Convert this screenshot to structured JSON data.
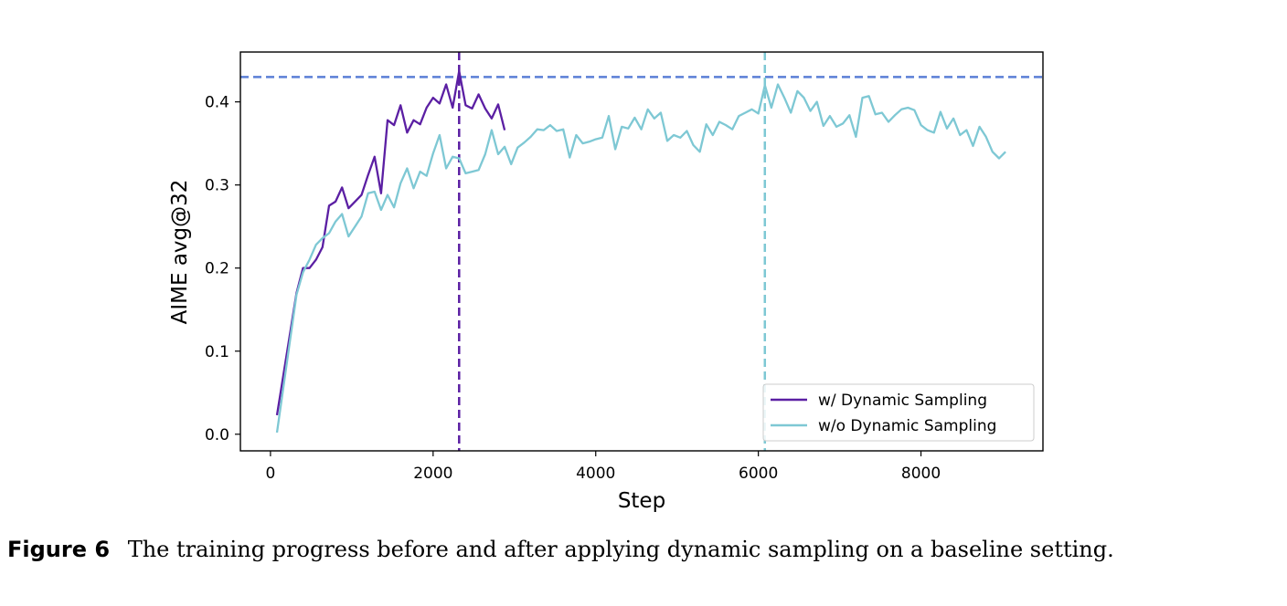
{
  "chart_data": {
    "type": "line",
    "title": "",
    "xlabel": "Step",
    "ylabel": "AIME avg@32",
    "xlim": [
      -370,
      9500
    ],
    "ylim": [
      -0.02,
      0.46
    ],
    "xticks": [
      0,
      2000,
      4000,
      6000,
      8000
    ],
    "yticks": [
      0.0,
      0.1,
      0.2,
      0.3,
      0.4
    ],
    "xtick_labels": [
      "0",
      "2000",
      "4000",
      "6000",
      "8000"
    ],
    "ytick_labels": [
      "0.0",
      "0.1",
      "0.2",
      "0.3",
      "0.4"
    ],
    "legend_position": "lower-right",
    "reference_lines": [
      {
        "orientation": "horizontal",
        "value": 0.43,
        "color": "#5b7fd6",
        "style": "dashed"
      },
      {
        "orientation": "vertical",
        "value": 2320,
        "color": "#5b1fa3",
        "style": "dashed"
      },
      {
        "orientation": "vertical",
        "value": 6080,
        "color": "#7ec8d4",
        "style": "dashed"
      }
    ],
    "series": [
      {
        "name": "w/ Dynamic Sampling",
        "color": "#5b1fa3",
        "x": [
          80,
          320,
          400,
          480,
          560,
          640,
          720,
          800,
          880,
          960,
          1040,
          1120,
          1200,
          1280,
          1360,
          1440,
          1520,
          1600,
          1680,
          1760,
          1840,
          1920,
          2000,
          2080,
          2160,
          2240,
          2320,
          2400,
          2480,
          2560,
          2640,
          2720,
          2800,
          2880
        ],
        "y": [
          0.023,
          0.17,
          0.2,
          0.2,
          0.21,
          0.225,
          0.275,
          0.28,
          0.297,
          0.272,
          0.28,
          0.288,
          0.312,
          0.334,
          0.29,
          0.378,
          0.372,
          0.396,
          0.363,
          0.378,
          0.373,
          0.393,
          0.405,
          0.398,
          0.421,
          0.393,
          0.437,
          0.396,
          0.392,
          0.409,
          0.392,
          0.38,
          0.397,
          0.366
        ]
      },
      {
        "name": "w/o Dynamic Sampling",
        "color": "#7ec8d4",
        "x": [
          80,
          320,
          400,
          480,
          560,
          640,
          720,
          800,
          880,
          960,
          1040,
          1120,
          1200,
          1280,
          1360,
          1440,
          1520,
          1600,
          1680,
          1760,
          1840,
          1920,
          2000,
          2080,
          2160,
          2240,
          2320,
          2400,
          2480,
          2560,
          2640,
          2720,
          2800,
          2880,
          2960,
          3040,
          3120,
          3200,
          3280,
          3360,
          3440,
          3520,
          3600,
          3680,
          3760,
          3840,
          3920,
          4000,
          4080,
          4160,
          4240,
          4320,
          4400,
          4480,
          4560,
          4640,
          4720,
          4800,
          4880,
          4960,
          5040,
          5120,
          5200,
          5280,
          5360,
          5440,
          5520,
          5600,
          5680,
          5760,
          5840,
          5920,
          6000,
          6080,
          6160,
          6240,
          6320,
          6400,
          6480,
          6560,
          6640,
          6720,
          6800,
          6880,
          6960,
          7040,
          7120,
          7200,
          7280,
          7360,
          7440,
          7520,
          7600,
          7680,
          7760,
          7840,
          7920,
          8000,
          8080,
          8160,
          8240,
          8320,
          8400,
          8480,
          8560,
          8640,
          8720,
          8800,
          8880,
          8960,
          9040
        ],
        "y": [
          0.002,
          0.168,
          0.195,
          0.21,
          0.228,
          0.236,
          0.242,
          0.256,
          0.265,
          0.238,
          0.25,
          0.262,
          0.29,
          0.292,
          0.27,
          0.288,
          0.273,
          0.302,
          0.32,
          0.296,
          0.316,
          0.311,
          0.338,
          0.36,
          0.32,
          0.334,
          0.332,
          0.314,
          0.316,
          0.318,
          0.337,
          0.366,
          0.337,
          0.346,
          0.325,
          0.345,
          0.351,
          0.358,
          0.367,
          0.366,
          0.372,
          0.365,
          0.367,
          0.333,
          0.36,
          0.35,
          0.352,
          0.355,
          0.357,
          0.383,
          0.343,
          0.37,
          0.368,
          0.381,
          0.367,
          0.391,
          0.38,
          0.387,
          0.353,
          0.36,
          0.357,
          0.365,
          0.348,
          0.34,
          0.373,
          0.36,
          0.376,
          0.372,
          0.367,
          0.383,
          0.387,
          0.391,
          0.386,
          0.42,
          0.393,
          0.421,
          0.405,
          0.387,
          0.413,
          0.405,
          0.389,
          0.4,
          0.371,
          0.383,
          0.37,
          0.374,
          0.384,
          0.358,
          0.405,
          0.407,
          0.385,
          0.387,
          0.376,
          0.384,
          0.391,
          0.393,
          0.39,
          0.372,
          0.366,
          0.363,
          0.388,
          0.368,
          0.38,
          0.36,
          0.366,
          0.347,
          0.37,
          0.358,
          0.34,
          0.332,
          0.34
        ]
      }
    ]
  },
  "caption": {
    "label": "Figure 6",
    "text": "The training progress before and after applying dynamic sampling on a baseline setting."
  }
}
